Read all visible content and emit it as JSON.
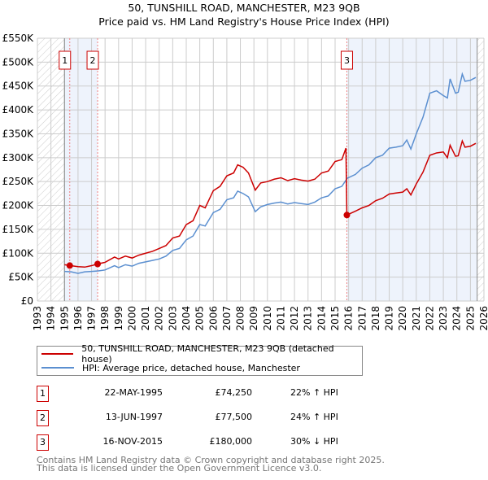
{
  "chart_data": {
    "type": "line",
    "title": "50, TUNSHILL ROAD, MANCHESTER, M23 9QB",
    "subtitle": "Price paid vs. HM Land Registry's House Price Index (HPI)",
    "xlim": [
      1993,
      2026
    ],
    "ylim": [
      0,
      550000
    ],
    "y_ticks": [
      {
        "v": 0,
        "label": "£0"
      },
      {
        "v": 50000,
        "label": "£50K"
      },
      {
        "v": 100000,
        "label": "£100K"
      },
      {
        "v": 150000,
        "label": "£150K"
      },
      {
        "v": 200000,
        "label": "£200K"
      },
      {
        "v": 250000,
        "label": "£250K"
      },
      {
        "v": 300000,
        "label": "£300K"
      },
      {
        "v": 350000,
        "label": "£350K"
      },
      {
        "v": 400000,
        "label": "£400K"
      },
      {
        "v": 450000,
        "label": "£450K"
      },
      {
        "v": 500000,
        "label": "£500K"
      },
      {
        "v": 550000,
        "label": "£550K"
      }
    ],
    "x_ticks": [
      "1993",
      "1994",
      "1995",
      "1996",
      "1997",
      "1998",
      "1999",
      "2000",
      "2001",
      "2002",
      "2003",
      "2004",
      "2005",
      "2006",
      "2007",
      "2008",
      "2009",
      "2010",
      "2011",
      "2012",
      "2013",
      "2014",
      "2015",
      "2016",
      "2017",
      "2018",
      "2019",
      "2020",
      "2021",
      "2022",
      "2023",
      "2024",
      "2025",
      "2026"
    ],
    "grid": true,
    "series": [
      {
        "name": "50, TUNSHILL ROAD, MANCHESTER, M23 9QB (detached house)",
        "color": "#cc0000",
        "x": [
          1995.0,
          1995.39,
          1996,
          1996.5,
          1997,
          1997.45,
          1998,
          1998.7,
          1999,
          1999.5,
          2000,
          2000.5,
          2001,
          2001.5,
          2002,
          2002.5,
          2003,
          2003.5,
          2004,
          2004.5,
          2005,
          2005.4,
          2006,
          2006.5,
          2007,
          2007.5,
          2007.8,
          2008.2,
          2008.6,
          2009.1,
          2009.5,
          2010,
          2010.5,
          2011,
          2011.5,
          2012,
          2012.5,
          2013,
          2013.5,
          2014,
          2014.5,
          2015,
          2015.5,
          2015.8,
          2015.87,
          2016.5,
          2017,
          2017.5,
          2018,
          2018.5,
          2019,
          2019.5,
          2020,
          2020.3,
          2020.6,
          2021,
          2021.5,
          2022,
          2022.5,
          2023,
          2023.3,
          2023.5,
          2023.9,
          2024.1,
          2024.4,
          2024.6,
          2025,
          2025.4
        ],
        "y": [
          76000,
          74250,
          72000,
          71000,
          74000,
          77500,
          81000,
          92000,
          88000,
          94000,
          90000,
          96000,
          100000,
          104000,
          110000,
          116000,
          132000,
          136000,
          160000,
          168000,
          200000,
          195000,
          231000,
          240000,
          262000,
          268000,
          285000,
          280000,
          268000,
          232000,
          247000,
          250000,
          255000,
          258000,
          252000,
          256000,
          253000,
          251000,
          255000,
          268000,
          272000,
          292000,
          296000,
          320000,
          180000,
          188000,
          195000,
          200000,
          210000,
          215000,
          224000,
          226000,
          228000,
          235000,
          222000,
          245000,
          270000,
          305000,
          310000,
          312000,
          300000,
          326000,
          303000,
          304000,
          335000,
          322000,
          324000,
          330000
        ]
      },
      {
        "name": "HPI: Average price, detached house, Manchester",
        "color": "#5b8fd0",
        "x": [
          1995.0,
          1995.5,
          1996,
          1996.5,
          1997,
          1997.5,
          1998,
          1998.7,
          1999,
          1999.5,
          2000,
          2000.5,
          2001,
          2001.5,
          2002,
          2002.5,
          2003,
          2003.5,
          2004,
          2004.5,
          2005,
          2005.4,
          2006,
          2006.5,
          2007,
          2007.5,
          2007.8,
          2008.2,
          2008.6,
          2009.1,
          2009.5,
          2010,
          2010.5,
          2011,
          2011.5,
          2012,
          2012.5,
          2013,
          2013.5,
          2014,
          2014.5,
          2015,
          2015.5,
          2015.9,
          2016.5,
          2017,
          2017.5,
          2018,
          2018.5,
          2019,
          2019.5,
          2020,
          2020.3,
          2020.6,
          2021,
          2021.5,
          2022,
          2022.5,
          2023,
          2023.3,
          2023.5,
          2023.9,
          2024.1,
          2024.4,
          2024.6,
          2025,
          2025.4
        ],
        "y": [
          62000,
          61000,
          58000,
          61000,
          62000,
          63000,
          65000,
          74000,
          70000,
          76000,
          73000,
          79000,
          82000,
          85000,
          88000,
          94000,
          106000,
          110000,
          128000,
          136000,
          160000,
          157000,
          185000,
          192000,
          212000,
          216000,
          230000,
          225000,
          218000,
          187000,
          197000,
          202000,
          205000,
          207000,
          203000,
          206000,
          204000,
          202000,
          207000,
          216000,
          220000,
          235000,
          240000,
          257000,
          265000,
          278000,
          285000,
          300000,
          305000,
          320000,
          322000,
          325000,
          337000,
          318000,
          350000,
          385000,
          435000,
          440000,
          430000,
          425000,
          465000,
          435000,
          437000,
          475000,
          460000,
          462000,
          468000
        ]
      }
    ],
    "sales": [
      {
        "id": "1",
        "x": 1995.39,
        "y": 74250
      },
      {
        "id": "2",
        "x": 1997.45,
        "y": 77500
      },
      {
        "id": "3",
        "x": 2015.87,
        "y": 180000
      }
    ],
    "legend_position": "below"
  },
  "legend": {
    "items": [
      "50, TUNSHILL ROAD, MANCHESTER, M23 9QB (detached house)",
      "HPI: Average price, detached house, Manchester"
    ]
  },
  "table": [
    {
      "id": "1",
      "date": "22-MAY-1995",
      "price": "£74,250",
      "hpi": "22% ↑ HPI"
    },
    {
      "id": "2",
      "date": "13-JUN-1997",
      "price": "£77,500",
      "hpi": "24% ↑ HPI"
    },
    {
      "id": "3",
      "date": "16-NOV-2015",
      "price": "£180,000",
      "hpi": "30% ↓ HPI"
    }
  ],
  "footer": [
    "Contains HM Land Registry data © Crown copyright and database right 2025.",
    "This data is licensed under the Open Government Licence v3.0."
  ]
}
